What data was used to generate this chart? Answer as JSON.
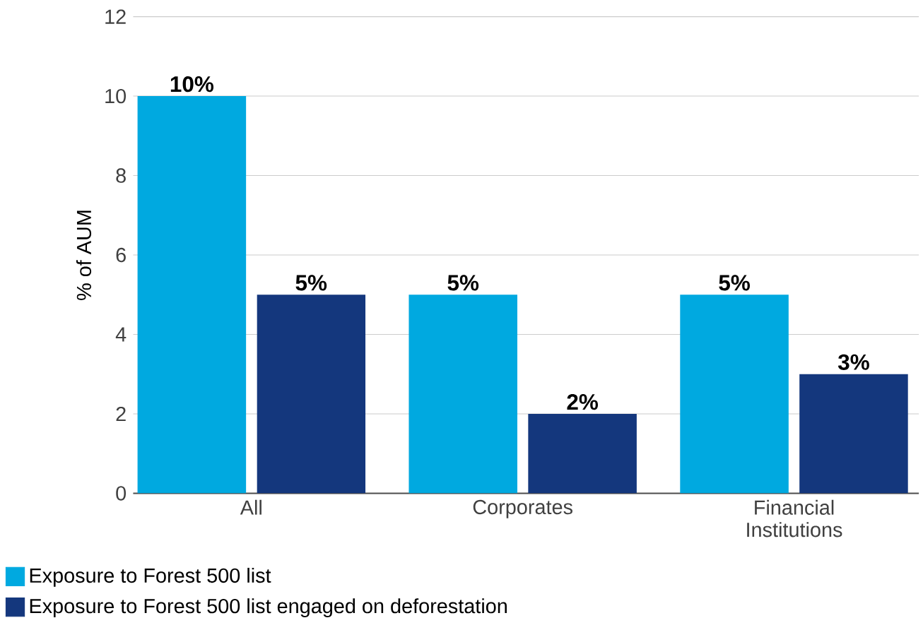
{
  "chart_data": {
    "type": "bar",
    "ylabel": "% of AUM",
    "categories": [
      "All",
      "Corporates",
      "Financial Institutions"
    ],
    "series": [
      {
        "name": "Exposure to Forest 500 list",
        "color": "#00a9e0",
        "values": [
          10,
          5,
          5
        ],
        "value_labels": [
          "10%",
          "5%",
          "5%"
        ]
      },
      {
        "name": "Exposure to Forest 500 list engaged on deforestation",
        "color": "#14377d",
        "values": [
          5,
          2,
          3
        ],
        "value_labels": [
          "5%",
          "2%",
          "3%"
        ]
      }
    ],
    "ylim": [
      0,
      12
    ],
    "yticks": [
      0,
      2,
      4,
      6,
      8,
      10,
      12
    ],
    "grid": "y",
    "legend": "bottom left"
  }
}
